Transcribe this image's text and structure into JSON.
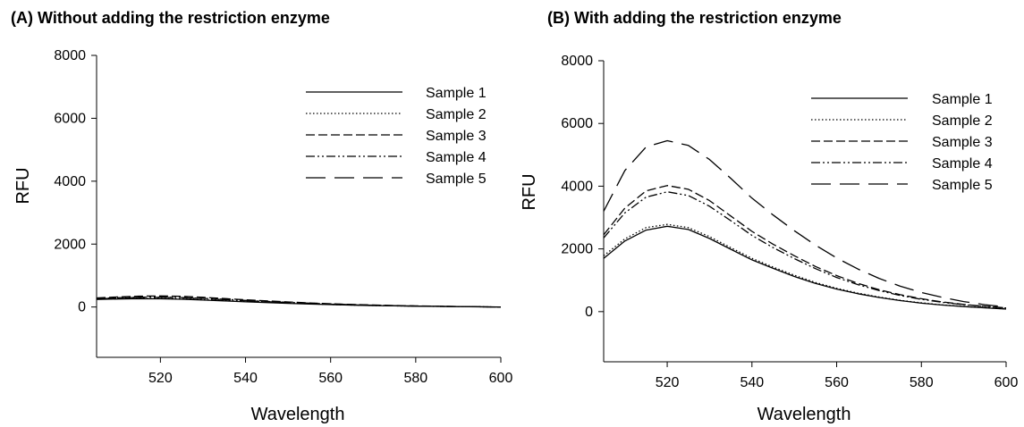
{
  "chart_data": [
    {
      "type": "line",
      "title": "(A) Without adding the restriction enzyme",
      "xlabel": "Wavelength",
      "ylabel": "RFU",
      "xlim": [
        505,
        600
      ],
      "ylim": [
        -1600,
        8000
      ],
      "xticks": [
        520,
        540,
        560,
        580,
        600
      ],
      "yticks": [
        0,
        2000,
        4000,
        6000,
        8000
      ],
      "legend_position": "top-right",
      "grid": false,
      "x": [
        505,
        510,
        515,
        520,
        525,
        530,
        535,
        540,
        545,
        550,
        555,
        560,
        565,
        570,
        575,
        580,
        585,
        590,
        595,
        600
      ],
      "series": [
        {
          "name": "Sample 1",
          "dash": "solid",
          "values": [
            240,
            255,
            265,
            260,
            245,
            220,
            195,
            165,
            140,
            115,
            95,
            75,
            60,
            45,
            35,
            25,
            18,
            12,
            6,
            0
          ]
        },
        {
          "name": "Sample 2",
          "dash": "dotted",
          "values": [
            250,
            265,
            275,
            270,
            255,
            230,
            205,
            175,
            150,
            125,
            100,
            80,
            62,
            48,
            37,
            27,
            20,
            13,
            7,
            0
          ]
        },
        {
          "name": "Sample 3",
          "dash": "dashed",
          "values": [
            290,
            320,
            345,
            350,
            340,
            310,
            270,
            230,
            195,
            160,
            130,
            105,
            82,
            63,
            48,
            35,
            25,
            16,
            8,
            0
          ]
        },
        {
          "name": "Sample 4",
          "dash": "dashdotdot",
          "values": [
            270,
            295,
            315,
            315,
            300,
            275,
            245,
            210,
            178,
            148,
            120,
            95,
            75,
            57,
            43,
            31,
            22,
            14,
            7,
            0
          ]
        },
        {
          "name": "Sample 5",
          "dash": "longdash",
          "values": [
            260,
            285,
            305,
            305,
            292,
            265,
            235,
            200,
            170,
            140,
            115,
            90,
            70,
            54,
            41,
            30,
            21,
            14,
            7,
            0
          ]
        }
      ]
    },
    {
      "type": "line",
      "title": "(B) With adding the restriction enzyme",
      "xlabel": "Wavelength",
      "ylabel": "RFU",
      "xlim": [
        505,
        600
      ],
      "ylim": [
        -1600,
        8000
      ],
      "xticks": [
        520,
        540,
        560,
        580,
        600
      ],
      "yticks": [
        0,
        2000,
        4000,
        6000,
        8000
      ],
      "legend_position": "top-right",
      "grid": false,
      "x": [
        505,
        510,
        515,
        520,
        525,
        530,
        535,
        540,
        545,
        550,
        555,
        560,
        565,
        570,
        575,
        580,
        585,
        590,
        595,
        600
      ],
      "series": [
        {
          "name": "Sample 1",
          "dash": "solid",
          "values": [
            1700,
            2250,
            2600,
            2720,
            2620,
            2330,
            1990,
            1650,
            1380,
            1120,
            900,
            720,
            570,
            450,
            350,
            270,
            210,
            160,
            120,
            80
          ]
        },
        {
          "name": "Sample 2",
          "dash": "dotted",
          "values": [
            1780,
            2320,
            2680,
            2780,
            2680,
            2390,
            2040,
            1700,
            1420,
            1160,
            930,
            745,
            590,
            465,
            360,
            280,
            215,
            165,
            125,
            85
          ]
        },
        {
          "name": "Sample 3",
          "dash": "dashed",
          "values": [
            2450,
            3300,
            3850,
            4020,
            3900,
            3540,
            3050,
            2560,
            2150,
            1780,
            1440,
            1150,
            900,
            700,
            540,
            410,
            310,
            230,
            170,
            120
          ]
        },
        {
          "name": "Sample 4",
          "dash": "dashdotdot",
          "values": [
            2350,
            3150,
            3650,
            3820,
            3700,
            3360,
            2900,
            2430,
            2040,
            1690,
            1370,
            1090,
            860,
            670,
            515,
            390,
            295,
            220,
            165,
            115
          ]
        },
        {
          "name": "Sample 5",
          "dash": "longdash",
          "values": [
            3200,
            4500,
            5250,
            5450,
            5300,
            4850,
            4250,
            3620,
            3080,
            2580,
            2120,
            1710,
            1360,
            1060,
            810,
            610,
            450,
            320,
            220,
            150
          ]
        }
      ]
    }
  ]
}
